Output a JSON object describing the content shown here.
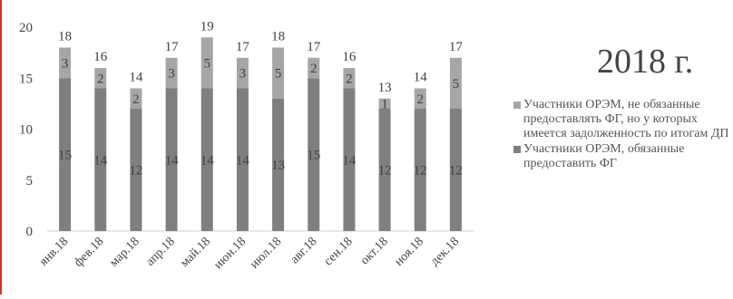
{
  "chart_data": {
    "type": "bar",
    "stacked": true,
    "title": "2018 г.",
    "categories": [
      "янв.18",
      "фев.18",
      "мар.18",
      "апр.18",
      "май.18",
      "июн.18",
      "июл.18",
      "авг.18",
      "сен.18",
      "окт.18",
      "ноя.18",
      "дек.18"
    ],
    "series": [
      {
        "name": "Участники ОРЭМ, обязанные предоставить ФГ",
        "color": "#7f7f7f",
        "values": [
          15,
          14,
          12,
          14,
          14,
          14,
          13,
          15,
          14,
          12,
          12,
          12
        ]
      },
      {
        "name": "Участники ОРЭМ, не обязанные предоставлять ФГ, но у которых имеется задолженность по итогам ДП",
        "color": "#a6a6a6",
        "values": [
          3,
          2,
          2,
          3,
          5,
          3,
          5,
          2,
          2,
          1,
          2,
          5
        ]
      }
    ],
    "totals": [
      "18",
      "16",
      "14",
      "17",
      "19",
      "17",
      "18",
      "17",
      "16",
      "13",
      "14",
      "17"
    ],
    "yticks": [
      "0",
      "5",
      "10",
      "15",
      "20"
    ],
    "ylim": [
      0,
      20
    ],
    "legend_position": "right",
    "legend_order": [
      1,
      0
    ]
  }
}
